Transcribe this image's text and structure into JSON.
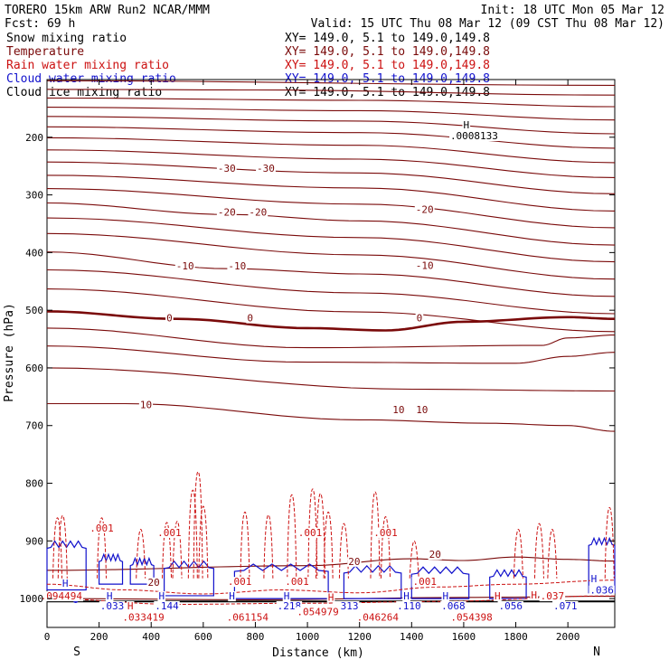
{
  "header": {
    "left1": "TORERO  15km ARW   Run2    NCAR/MMM",
    "right1": "Init: 18 UTC Mon 05 Mar 12",
    "left2": "Fcst:   69 h",
    "right2": "Valid: 15 UTC Thu 08 Mar 12 (09 CST Thu 08 Mar 12)"
  },
  "colors": {
    "temperature": "#7a0a0a",
    "snow": "#000000",
    "rain": "#cc1111",
    "cloud_water": "#1111cc",
    "cloud_ice": "#000000",
    "frame": "#000000"
  },
  "chart_data": {
    "type": "contour",
    "title": "",
    "xlabel": "Distance (km)",
    "ylabel": "Pressure (hPa)",
    "xlim": [
      0,
      2180
    ],
    "ylim": [
      1050,
      100
    ],
    "x_ticks": [
      0,
      200,
      400,
      600,
      800,
      1000,
      1200,
      1400,
      1600,
      1800,
      2000
    ],
    "y_ticks": [
      200,
      300,
      400,
      500,
      600,
      700,
      800,
      900,
      1000
    ],
    "x_end_labels": {
      "left": "S",
      "right": "N"
    },
    "series": [
      {
        "name": "Snow mixing ratio",
        "info": "XY= 149.0,  5.1 to 149.0,149.8",
        "color": "#000000"
      },
      {
        "name": "Temperature",
        "info": "XY= 149.0,  5.1 to 149.0,149.8",
        "color": "#7a0a0a"
      },
      {
        "name": "Rain water mixing ratio",
        "info": "XY= 149.0,  5.1 to 149.0,149.8",
        "color": "#cc1111"
      },
      {
        "name": "Cloud water mixing ratio",
        "info": "XY= 149.0,  5.1 to 149.0,149.8",
        "color": "#1111cc"
      },
      {
        "name": "Cloud ice mixing ratio",
        "info": "XY= 149.0,  5.1 to 149.0,149.8",
        "color": "#000000"
      }
    ],
    "temperature_contours": [
      {
        "level": null,
        "p": [
          [
            0,
            102
          ],
          [
            2180,
            110
          ]
        ]
      },
      {
        "level": null,
        "p": [
          [
            0,
            117
          ],
          [
            800,
            118
          ],
          [
            2180,
            127
          ]
        ]
      },
      {
        "level": null,
        "p": [
          [
            0,
            132
          ],
          [
            1200,
            136
          ],
          [
            2180,
            147
          ]
        ]
      },
      {
        "level": null,
        "p": [
          [
            0,
            148
          ],
          [
            1200,
            154
          ],
          [
            2180,
            170
          ]
        ]
      },
      {
        "level": null,
        "p": [
          [
            0,
            164
          ],
          [
            1200,
            172
          ],
          [
            2180,
            194
          ]
        ]
      },
      {
        "level": null,
        "p": [
          [
            0,
            182
          ],
          [
            1200,
            192
          ],
          [
            2180,
            219
          ]
        ]
      },
      {
        "level": null,
        "p": [
          [
            0,
            201
          ],
          [
            1200,
            214
          ],
          [
            2180,
            244
          ]
        ]
      },
      {
        "level": null,
        "p": [
          [
            0,
            222
          ],
          [
            1200,
            238
          ],
          [
            2180,
            270
          ]
        ]
      },
      {
        "level": -30,
        "p": [
          [
            0,
            243
          ],
          [
            1200,
            262
          ],
          [
            2180,
            298
          ]
        ]
      },
      {
        "level": null,
        "p": [
          [
            0,
            266
          ],
          [
            1200,
            288
          ],
          [
            2180,
            328
          ]
        ]
      },
      {
        "level": null,
        "p": [
          [
            0,
            289
          ],
          [
            1200,
            316
          ],
          [
            2180,
            357
          ]
        ]
      },
      {
        "level": -20,
        "p": [
          [
            0,
            314
          ],
          [
            700,
            334
          ],
          [
            1200,
            345
          ],
          [
            2180,
            387
          ]
        ]
      },
      {
        "level": null,
        "p": [
          [
            0,
            340
          ],
          [
            1200,
            374
          ],
          [
            2180,
            416
          ]
        ]
      },
      {
        "level": null,
        "p": [
          [
            0,
            367
          ],
          [
            1200,
            404
          ],
          [
            2180,
            446
          ]
        ]
      },
      {
        "level": -10,
        "p": [
          [
            0,
            399
          ],
          [
            700,
            428
          ],
          [
            1200,
            437
          ],
          [
            2180,
            476
          ]
        ]
      },
      {
        "level": null,
        "p": [
          [
            0,
            430
          ],
          [
            1200,
            470
          ],
          [
            2180,
            506
          ]
        ]
      },
      {
        "level": null,
        "p": [
          [
            0,
            463
          ],
          [
            1200,
            503
          ],
          [
            2180,
            537
          ]
        ]
      },
      {
        "level": 0,
        "p": [
          [
            0,
            502
          ],
          [
            500,
            515
          ],
          [
            1000,
            531
          ],
          [
            1300,
            535
          ],
          [
            1600,
            520
          ],
          [
            2000,
            512
          ],
          [
            2180,
            515
          ]
        ],
        "bold": true
      },
      {
        "level": null,
        "p": [
          [
            0,
            531
          ],
          [
            1000,
            565
          ],
          [
            1900,
            561
          ],
          [
            2000,
            548
          ],
          [
            2180,
            543
          ]
        ]
      },
      {
        "level": null,
        "p": [
          [
            0,
            562
          ],
          [
            1000,
            590
          ],
          [
            1800,
            592
          ],
          [
            2000,
            580
          ],
          [
            2180,
            573
          ]
        ]
      },
      {
        "level": 10,
        "p": [
          [
            0,
            600
          ],
          [
            1400,
            637
          ],
          [
            2180,
            640
          ]
        ]
      },
      {
        "level": null,
        "p": [
          [
            0,
            662
          ],
          [
            300,
            662
          ],
          [
            1200,
            690
          ],
          [
            1700,
            696
          ],
          [
            2000,
            700
          ],
          [
            2180,
            710
          ]
        ]
      },
      {
        "level": 20,
        "p": [
          [
            0,
            951
          ],
          [
            1000,
            943
          ],
          [
            1400,
            931
          ],
          [
            1600,
            934
          ],
          [
            1800,
            928
          ],
          [
            2000,
            932
          ],
          [
            2180,
            935
          ]
        ]
      }
    ],
    "annotations": [
      {
        "text": "-30",
        "x": 690,
        "y": 258,
        "color": "#7a0a0a"
      },
      {
        "text": "-30",
        "x": 840,
        "y": 258,
        "color": "#7a0a0a"
      },
      {
        "text": "-20",
        "x": 690,
        "y": 334,
        "color": "#7a0a0a"
      },
      {
        "text": "-20",
        "x": 810,
        "y": 334,
        "color": "#7a0a0a"
      },
      {
        "text": "-20",
        "x": 1450,
        "y": 330,
        "color": "#7a0a0a"
      },
      {
        "text": "-10",
        "x": 530,
        "y": 428,
        "color": "#7a0a0a"
      },
      {
        "text": "-10",
        "x": 730,
        "y": 428,
        "color": "#7a0a0a"
      },
      {
        "text": "-10",
        "x": 1450,
        "y": 427,
        "color": "#7a0a0a"
      },
      {
        "text": "0",
        "x": 470,
        "y": 518,
        "color": "#7a0a0a"
      },
      {
        "text": "0",
        "x": 780,
        "y": 518,
        "color": "#7a0a0a"
      },
      {
        "text": "0",
        "x": 1430,
        "y": 518,
        "color": "#7a0a0a"
      },
      {
        "text": "10",
        "x": 380,
        "y": 668,
        "color": "#7a0a0a"
      },
      {
        "text": "10",
        "x": 1350,
        "y": 677,
        "color": "#7a0a0a"
      },
      {
        "text": "10",
        "x": 1440,
        "y": 677,
        "color": "#7a0a0a"
      },
      {
        "text": "20",
        "x": 1180,
        "y": 940,
        "color": "#7a0a0a"
      },
      {
        "text": "20",
        "x": 1490,
        "y": 928,
        "color": "#7a0a0a"
      },
      {
        "text": "20",
        "x": 410,
        "y": 976,
        "color": "#7a0a0a"
      },
      {
        "text": "H",
        "x": 1610,
        "y": 183,
        "color": "#000000"
      },
      {
        "text": ".0008133",
        "x": 1640,
        "y": 202,
        "color": "#000000"
      },
      {
        "text": ".001",
        "x": 210,
        "y": 882,
        "color": "#cc1111"
      },
      {
        "text": ".001",
        "x": 470,
        "y": 890,
        "color": "#cc1111"
      },
      {
        "text": ".001",
        "x": 1010,
        "y": 890,
        "color": "#cc1111"
      },
      {
        "text": ".001",
        "x": 1300,
        "y": 890,
        "color": "#cc1111"
      },
      {
        "text": ".001",
        "x": 740,
        "y": 975,
        "color": "#cc1111"
      },
      {
        "text": ".001",
        "x": 960,
        "y": 975,
        "color": "#cc1111"
      },
      {
        "text": ".001",
        "x": 1450,
        "y": 975,
        "color": "#cc1111"
      },
      {
        "text": "H",
        "x": 70,
        "y": 978,
        "color": "#1111cc"
      },
      {
        "text": "H",
        "x": 2100,
        "y": 970,
        "color": "#1111cc"
      },
      {
        "text": ".036",
        "x": 2130,
        "y": 990,
        "color": "#1111cc"
      },
      {
        "text": ".094494",
        "x": 55,
        "y": 1000,
        "color": "#cc1111"
      },
      {
        "text": "H",
        "x": 240,
        "y": 1000,
        "color": "#1111cc"
      },
      {
        "text": "H",
        "x": 440,
        "y": 1000,
        "color": "#1111cc"
      },
      {
        "text": "H",
        "x": 710,
        "y": 1000,
        "color": "#1111cc"
      },
      {
        "text": "H",
        "x": 920,
        "y": 1000,
        "color": "#1111cc"
      },
      {
        "text": "H",
        "x": 1380,
        "y": 1000,
        "color": "#1111cc"
      },
      {
        "text": "H",
        "x": 1530,
        "y": 1000,
        "color": "#1111cc"
      },
      {
        "text": "H",
        "x": 1730,
        "y": 1000,
        "color": "#cc1111"
      },
      {
        "text": "H",
        "x": 1870,
        "y": 998,
        "color": "#cc1111"
      },
      {
        "text": ".037",
        "x": 1940,
        "y": 1000,
        "color": "#cc1111"
      },
      {
        "text": ".033",
        "x": 250,
        "y": 1017,
        "color": "#1111cc"
      },
      {
        "text": ".144",
        "x": 460,
        "y": 1017,
        "color": "#1111cc"
      },
      {
        "text": ".218",
        "x": 930,
        "y": 1017,
        "color": "#1111cc"
      },
      {
        "text": ".313",
        "x": 1150,
        "y": 1017,
        "color": "#1111cc"
      },
      {
        "text": ".110",
        "x": 1390,
        "y": 1017,
        "color": "#1111cc"
      },
      {
        "text": ".068",
        "x": 1560,
        "y": 1017,
        "color": "#1111cc"
      },
      {
        "text": ".056",
        "x": 1780,
        "y": 1017,
        "color": "#1111cc"
      },
      {
        "text": ".071",
        "x": 1990,
        "y": 1017,
        "color": "#1111cc"
      },
      {
        "text": ".033419",
        "x": 370,
        "y": 1037,
        "color": "#cc1111"
      },
      {
        "text": ".061154",
        "x": 770,
        "y": 1037,
        "color": "#cc1111"
      },
      {
        "text": ".054979",
        "x": 1040,
        "y": 1027,
        "color": "#cc1111"
      },
      {
        "text": ".046264",
        "x": 1270,
        "y": 1037,
        "color": "#cc1111"
      },
      {
        "text": ".054398",
        "x": 1630,
        "y": 1037,
        "color": "#cc1111"
      },
      {
        "text": "H",
        "x": 320,
        "y": 1017,
        "color": "#cc1111"
      },
      {
        "text": "H",
        "x": 1090,
        "y": 1002,
        "color": "#cc1111"
      }
    ],
    "rain_spikes": [
      {
        "x": 40,
        "top": 860
      },
      {
        "x": 60,
        "top": 856
      },
      {
        "x": 210,
        "top": 860
      },
      {
        "x": 360,
        "top": 880
      },
      {
        "x": 460,
        "top": 868
      },
      {
        "x": 500,
        "top": 866
      },
      {
        "x": 560,
        "top": 812
      },
      {
        "x": 580,
        "top": 780
      },
      {
        "x": 600,
        "top": 840
      },
      {
        "x": 760,
        "top": 850
      },
      {
        "x": 850,
        "top": 855
      },
      {
        "x": 940,
        "top": 820
      },
      {
        "x": 1020,
        "top": 810
      },
      {
        "x": 1050,
        "top": 818
      },
      {
        "x": 1080,
        "top": 850
      },
      {
        "x": 1140,
        "top": 870
      },
      {
        "x": 1260,
        "top": 815
      },
      {
        "x": 1300,
        "top": 858
      },
      {
        "x": 1410,
        "top": 900
      },
      {
        "x": 1810,
        "top": 880
      },
      {
        "x": 1890,
        "top": 870
      },
      {
        "x": 1940,
        "top": 880
      },
      {
        "x": 2160,
        "top": 842
      }
    ],
    "cloud_water_regions": [
      {
        "x0": 0,
        "x1": 150,
        "top": 905,
        "bottom": 985
      },
      {
        "x0": 200,
        "x1": 290,
        "top": 928,
        "bottom": 975
      },
      {
        "x0": 320,
        "x1": 410,
        "top": 935,
        "bottom": 975
      },
      {
        "x0": 450,
        "x1": 640,
        "top": 940,
        "bottom": 995
      },
      {
        "x0": 720,
        "x1": 1080,
        "top": 945,
        "bottom": 1000
      },
      {
        "x0": 1140,
        "x1": 1360,
        "top": 948,
        "bottom": 1000
      },
      {
        "x0": 1400,
        "x1": 1620,
        "top": 950,
        "bottom": 1000
      },
      {
        "x0": 1700,
        "x1": 1840,
        "top": 955,
        "bottom": 1000
      },
      {
        "x0": 2080,
        "x1": 2180,
        "top": 900,
        "bottom": 990
      }
    ],
    "surface_p": 1005
  }
}
